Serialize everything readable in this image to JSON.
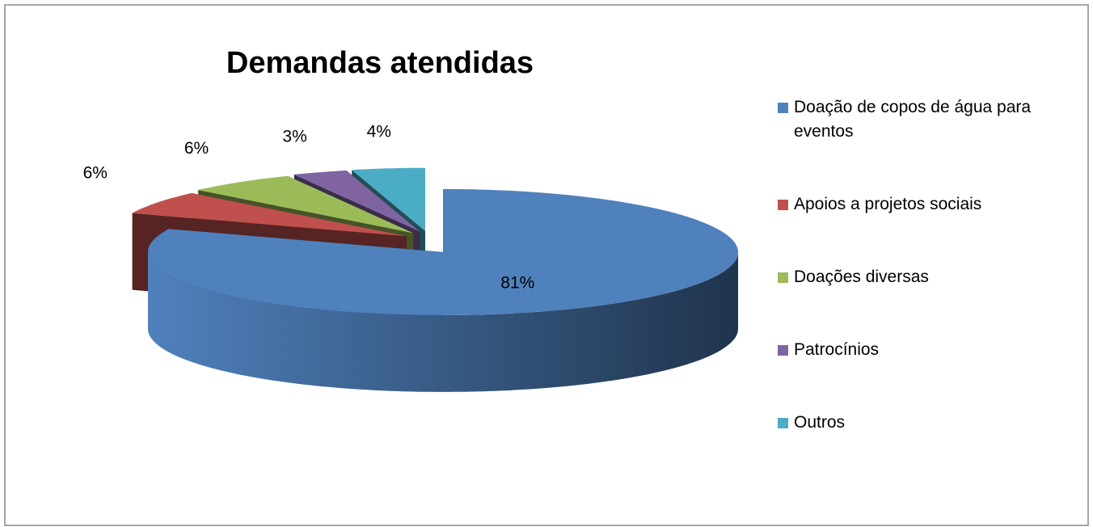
{
  "chart_data": {
    "type": "pie",
    "title": "Demandas atendidas",
    "categories": [
      "Doação de copos de água para eventos",
      "Apoios a projetos sociais",
      "Doações diversas",
      "Patrocínios",
      "Outros"
    ],
    "values": [
      81,
      6,
      6,
      3,
      4
    ],
    "value_labels": [
      "81%",
      "6%",
      "6%",
      "3%",
      "4%"
    ],
    "colors": [
      "#4f81bd",
      "#c0504d",
      "#9bbb59",
      "#8064a2",
      "#4bacc6"
    ],
    "legend": "right",
    "three_d": true,
    "exploded": true
  }
}
